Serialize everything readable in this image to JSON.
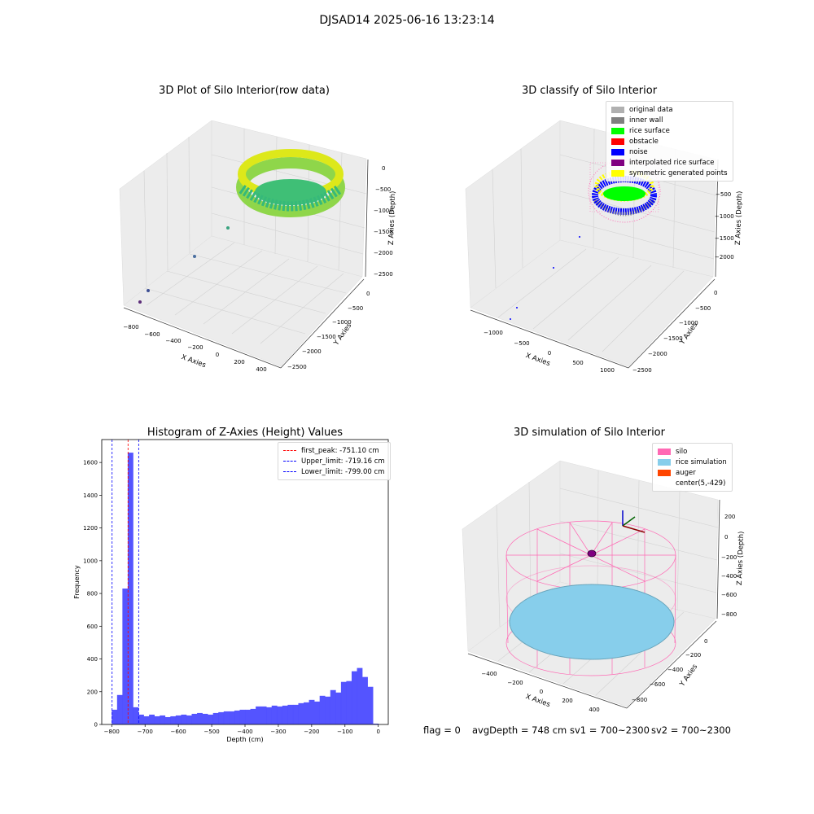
{
  "suptitle": "DJSAD14 2025-06-16 13:23:14",
  "panels": {
    "raw": {
      "title": "3D Plot of Silo Interior(row data)",
      "xlabel": "X Axies",
      "ylabel": "Y Axies",
      "zlabel": "Z Axies (Depth)",
      "xticks": [
        "−800",
        "−600",
        "−400",
        "−200",
        "0",
        "200",
        "400"
      ],
      "yticks": [
        "0",
        "−500",
        "−1000",
        "−1500",
        "−2000",
        "−2500"
      ],
      "zticks": [
        "0",
        "−500",
        "−1000",
        "−1500",
        "−2000",
        "−2500"
      ]
    },
    "classify": {
      "title": "3D classify of Silo Interior",
      "xlabel": "X Axies",
      "ylabel": "Y Axies",
      "zlabel": "Z Axies (Depth)",
      "xticks": [
        "−1000",
        "−500",
        "0",
        "500",
        "1000"
      ],
      "yticks": [
        "0",
        "−500",
        "−1000",
        "−1500",
        "−2000",
        "−2500"
      ],
      "zticks": [
        "0",
        "−500",
        "−1000",
        "−1500",
        "−2000"
      ],
      "legend": [
        {
          "label": "original data",
          "color": "#b0b0b0"
        },
        {
          "label": "inner wall",
          "color": "#808080"
        },
        {
          "label": "rice surface",
          "color": "#00ff00"
        },
        {
          "label": "obstacle",
          "color": "#ff0000"
        },
        {
          "label": "noise",
          "color": "#0000ff"
        },
        {
          "label": "interpolated rice surface",
          "color": "#800080"
        },
        {
          "label": "symmetric generated points",
          "color": "#ffff00"
        }
      ]
    },
    "simulation": {
      "title": "3D simulation of Silo Interior",
      "xlabel": "X Axies",
      "ylabel": "Y Axies",
      "zlabel": "Z Axies (Depth)",
      "xticks": [
        "−400",
        "−200",
        "0",
        "200",
        "400"
      ],
      "yticks": [
        "0",
        "−200",
        "−400",
        "−600",
        "−800"
      ],
      "zticks": [
        "200",
        "0",
        "−200",
        "−400",
        "−600",
        "−800"
      ],
      "legend": [
        {
          "label": "silo",
          "color": "#ff69b4"
        },
        {
          "label": "rice simulation",
          "color": "#87ceeb"
        },
        {
          "label": "auger",
          "color": "#ff4500"
        },
        {
          "label": "center(5,-429)",
          "color": ""
        }
      ]
    }
  },
  "footer": {
    "flag": "flag = 0",
    "avg": "avgDepth = 748 cm",
    "sv1": "sv1 = 700~2300",
    "sv2": "sv2 = 700~2300"
  },
  "chart_data": [
    {
      "type": "bar",
      "title": "Histogram of Z-Axies (Height) Values",
      "xlabel": "Depth (cm)",
      "ylabel": "Frequency",
      "xlim": [
        -830,
        30
      ],
      "ylim": [
        0,
        1740
      ],
      "bin_width": 16,
      "bin_starts": [
        -800,
        -784,
        -768,
        -752,
        -736,
        -720,
        -704,
        -688,
        -672,
        -656,
        -640,
        -624,
        -608,
        -592,
        -576,
        -560,
        -544,
        -528,
        -512,
        -496,
        -480,
        -464,
        -448,
        -432,
        -416,
        -400,
        -384,
        -368,
        -352,
        -336,
        -320,
        -304,
        -288,
        -272,
        -256,
        -240,
        -224,
        -208,
        -192,
        -176,
        -160,
        -144,
        -128,
        -112,
        -96,
        -80,
        -64,
        -48,
        -32,
        -16
      ],
      "values": [
        90,
        180,
        830,
        1660,
        105,
        60,
        50,
        60,
        50,
        55,
        45,
        50,
        55,
        60,
        55,
        65,
        70,
        65,
        60,
        70,
        75,
        80,
        80,
        85,
        90,
        90,
        95,
        110,
        110,
        105,
        115,
        110,
        115,
        120,
        120,
        130,
        135,
        150,
        140,
        175,
        170,
        210,
        195,
        260,
        265,
        325,
        345,
        290,
        230,
        5
      ],
      "xticks": [
        -800,
        -700,
        -600,
        -500,
        -400,
        -300,
        -200,
        -100,
        0
      ],
      "yticks": [
        0,
        200,
        400,
        600,
        800,
        1000,
        1200,
        1400,
        1600
      ],
      "bar_color": "#4b4bff",
      "vlines": [
        {
          "label": "first_peak: -751.10 cm",
          "x": -751.1,
          "color": "#ff0000"
        },
        {
          "label": "Upper_limit: -719.16 cm",
          "x": -719.16,
          "color": "#0000ff"
        },
        {
          "label": "Lower_limit: -799.00 cm",
          "x": -799.0,
          "color": "#0000ff"
        }
      ]
    }
  ]
}
